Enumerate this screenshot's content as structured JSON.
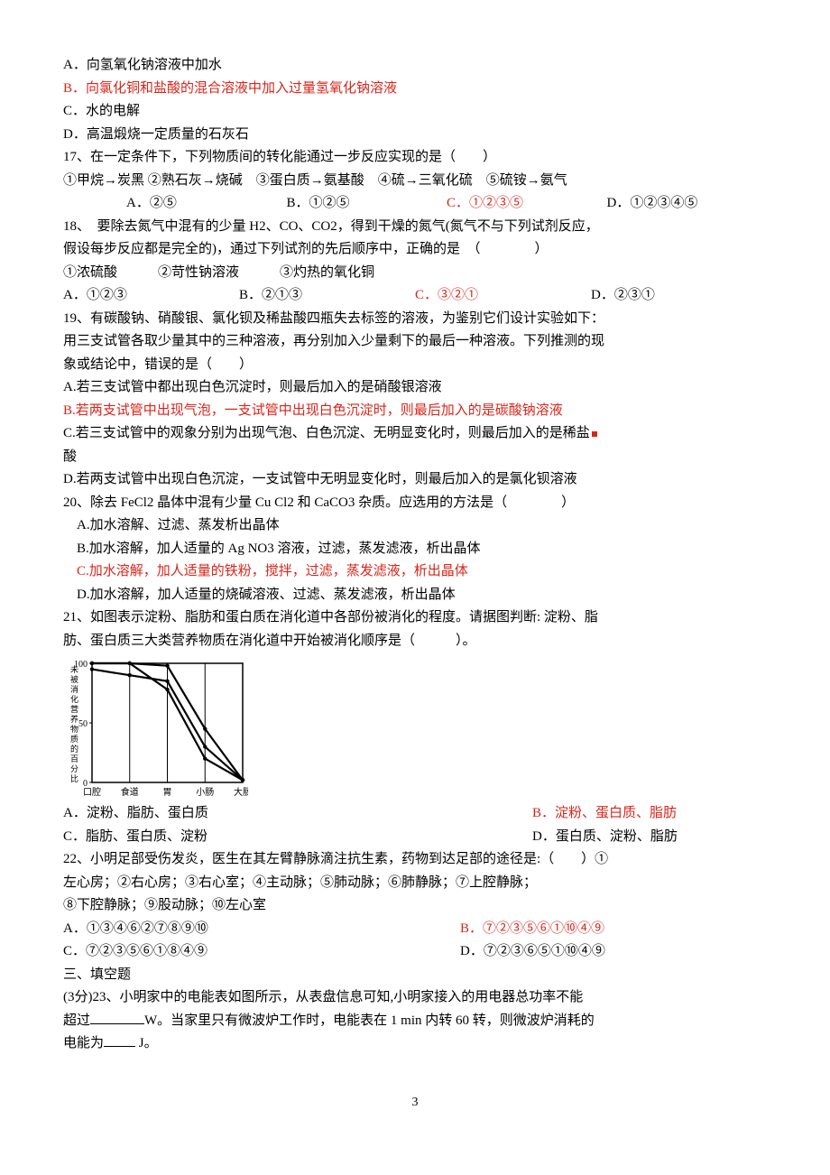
{
  "q16": {
    "optA": "A．向氢氧化钠溶液中加水",
    "optB": "B．向氯化铜和盐酸的混合溶液中加入过量氢氧化钠溶液",
    "optC": "C．水的电解",
    "optD": "D．高温煅烧一定质量的石灰石"
  },
  "q17": {
    "stem": "17、在一定条件下，下列物质间的转化能通过一步反应实现的是（　　）",
    "line2": "①甲烷→炭黑 ②熟石灰→烧碱　③蛋白质→氨基酸　④硫→三氧化硫　⑤硫铵→氨气",
    "optA": "A．②⑤",
    "optB": "B．①②⑤",
    "optC": "C．①②③⑤",
    "optD": "D．①②③④⑤"
  },
  "q18": {
    "stem1": "18、　要除去氮气中混有的少量 H2、CO、CO2，得到干燥的氮气(氮气不与下列试剂反应，",
    "stem2": "假设每步反应都是完全的)，通过下列试剂的先后顺序中，正确的是　（　　　　）",
    "reagents": "①浓硫酸　　　②苛性钠溶液　　　③灼热的氧化铜",
    "optA": "A．①②③",
    "optB": "B．②①③",
    "optC": "C．③②①",
    "optD": "D．②③①"
  },
  "q19": {
    "stem1": "19、有碳酸钠、硝酸银、氯化钡及稀盐酸四瓶失去标签的溶液，为鉴别它们设计实验如下：",
    "stem2": "用三支试管各取少量其中的三种溶液，再分别加入少量剩下的最后一种溶液。下列推测的现",
    "stem3": "象或结论中，错误的是（　　）",
    "optA": "A.若三支试管中都出现白色沉淀时，则最后加入的是硝酸银溶液",
    "optB": "B.若两支试管中出现气泡，一支试管中出现白色沉淀时，则最后加入的是碳酸钠溶液",
    "optC1": "C.若三支试管中的观象分别为出现气泡、白色沉淀、无明显变化时，则最后加入的是稀盐",
    "optC2": "酸",
    "optD": "D.若两支试管中出现白色沉淀，一支试管中无明显变化时，则最后加入的是氯化钡溶液"
  },
  "q20": {
    "stem": "20、除去 FeCl2 晶体中混有少量 Cu Cl2 和 CaCO3 杂质。应选用的方法是（　　　　）",
    "optA": "　A.加水溶解、过滤、蒸发析出晶体",
    "optB": "　B.加水溶解，加人适量的 Ag NO3 溶液，过滤，蒸发滤液，析出晶体",
    "optC": "　C.加水溶解，加人适量的铁粉，搅拌，过滤，蒸发滤液，析出晶体",
    "optD": "　D.加水溶解，加人适量的烧碱溶液、过滤、蒸发滤液，析出晶体"
  },
  "q21": {
    "stem1": "21、如图表示淀粉、脂肪和蛋白质在消化道中各部份被消化的程度。请据图判断: 淀粉、脂",
    "stem2": "肪、蛋白质三大类营养物质在消化道中开始被消化顺序是（　　　）。",
    "optA": "A．淀粉、脂肪、蛋白质",
    "optB": "B．淀粉、蛋白质、脂肪",
    "optC": "C．脂肪、蛋白质、淀粉",
    "optD": "D．蛋白质、淀粉、脂肪"
  },
  "q22": {
    "stem1": "22、小明足部受伤发炎，医生在其左臂静脉滴注抗生素，药物到达足部的途径是:（　　）①",
    "stem2": "左心房；②右心房；③右心室；④主动脉；⑤肺动脉；⑥肺静脉；⑦上腔静脉；",
    "stem3": "⑧下腔静脉；⑨股动脉；⑩左心室",
    "optA": "A．①③④⑥②⑦⑧⑨⑩",
    "optB": "B．⑦②③⑤⑥①⑩④⑨",
    "optC": "C．⑦②③⑤⑥①⑧④⑨",
    "optD": "D．⑦②③⑥⑤①⑩④⑨"
  },
  "section3": "三、填空题",
  "q23": {
    "line1a": "(3分)23、小明家中的电能表如图所示，从表盘信息可知,小明家接入的用电器总功率不能",
    "line2a": "超过",
    "line2b": "W。当家里只有微波炉工作时，电能表在 1 min 内转 60 转，则微波炉消耗的",
    "line3a": "电能为",
    "line3b": " J。"
  },
  "chart": {
    "type": "line",
    "y_label_vertical": "未被消化营养物质的百分比",
    "x_categories": [
      "口腔",
      "食道",
      "胃",
      "小肠",
      "大肠"
    ],
    "x_positions": [
      0,
      1,
      2,
      3,
      4
    ],
    "y_ticks": [
      0,
      50,
      100
    ],
    "ylim": [
      0,
      100
    ],
    "series": {
      "a": [
        100,
        100,
        98,
        45,
        2
      ],
      "b": [
        95,
        90,
        85,
        30,
        2
      ],
      "c": [
        100,
        100,
        78,
        20,
        2
      ]
    },
    "line_color": "#000000",
    "line_width": 2.2,
    "background": "#ffffff",
    "axis_color": "#000000",
    "font_size_axis": 10
  },
  "page_number": "3"
}
